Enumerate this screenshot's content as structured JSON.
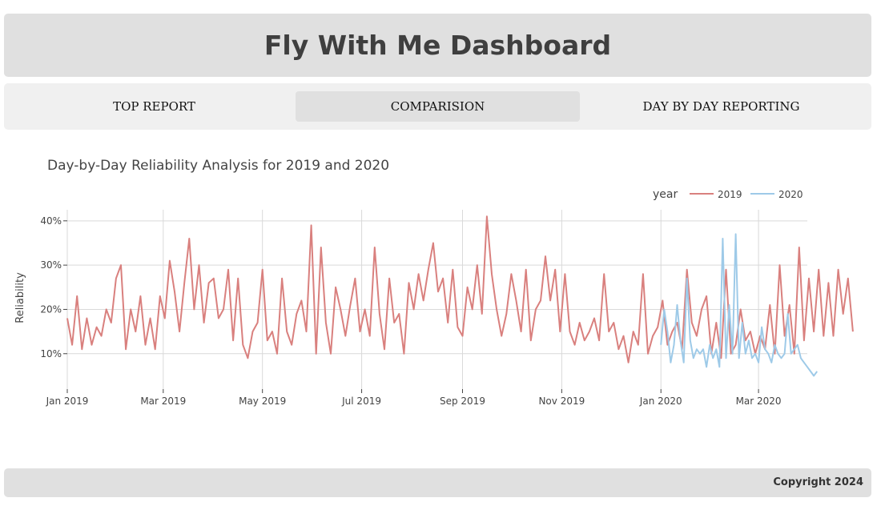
{
  "header": {
    "title": "Fly With Me Dashboard"
  },
  "nav": {
    "tabs": [
      {
        "label": "TOP REPORT",
        "active": false
      },
      {
        "label": "COMPARISION",
        "active": true
      },
      {
        "label": "DAY BY DAY REPORTING",
        "active": false
      }
    ]
  },
  "footer": {
    "copyright": "Copyright 2024"
  },
  "colors": {
    "series_2019": "#d9807e",
    "series_2020": "#9ecae8"
  },
  "chart_data": {
    "type": "line",
    "title": "Day-by-Day Reliability Analysis for 2019 and 2020",
    "xlabel": "",
    "ylabel": "Reliability",
    "legend": {
      "title": "year",
      "placement": "top-right"
    },
    "grid": true,
    "xlim": [
      "2019-01-01",
      "2020-03-31"
    ],
    "ylim": [
      0.02,
      0.425
    ],
    "y_ticks": [
      0.1,
      0.2,
      0.3,
      0.4
    ],
    "y_tick_labels": [
      "10%",
      "20%",
      "30%",
      "40%"
    ],
    "x_ticks": [
      "2019-01-01",
      "2019-03-01",
      "2019-05-01",
      "2019-07-01",
      "2019-09-01",
      "2019-11-01",
      "2020-01-01",
      "2020-03-01"
    ],
    "x_tick_labels": [
      "Jan 2019",
      "Mar 2019",
      "May 2019",
      "Jul 2019",
      "Sep 2019",
      "Nov 2019",
      "Jan 2020",
      "Mar 2020"
    ],
    "series": [
      {
        "name": "2019",
        "start_date": "2019-01-01",
        "step_days": 3,
        "values": [
          0.18,
          0.12,
          0.23,
          0.11,
          0.18,
          0.12,
          0.16,
          0.14,
          0.2,
          0.17,
          0.27,
          0.3,
          0.11,
          0.2,
          0.15,
          0.23,
          0.12,
          0.18,
          0.11,
          0.23,
          0.18,
          0.31,
          0.24,
          0.15,
          0.26,
          0.36,
          0.2,
          0.3,
          0.17,
          0.26,
          0.27,
          0.18,
          0.2,
          0.29,
          0.13,
          0.27,
          0.12,
          0.09,
          0.15,
          0.17,
          0.29,
          0.13,
          0.15,
          0.1,
          0.27,
          0.15,
          0.12,
          0.19,
          0.22,
          0.15,
          0.39,
          0.1,
          0.34,
          0.17,
          0.1,
          0.25,
          0.2,
          0.14,
          0.21,
          0.27,
          0.15,
          0.2,
          0.14,
          0.34,
          0.19,
          0.11,
          0.27,
          0.17,
          0.19,
          0.1,
          0.26,
          0.2,
          0.28,
          0.22,
          0.29,
          0.35,
          0.24,
          0.27,
          0.17,
          0.29,
          0.16,
          0.14,
          0.25,
          0.2,
          0.3,
          0.19,
          0.41,
          0.28,
          0.2,
          0.14,
          0.19,
          0.28,
          0.22,
          0.15,
          0.29,
          0.13,
          0.2,
          0.22,
          0.32,
          0.22,
          0.29,
          0.15,
          0.28,
          0.15,
          0.12,
          0.17,
          0.13,
          0.15,
          0.18,
          0.13,
          0.28,
          0.15,
          0.17,
          0.11,
          0.14,
          0.08,
          0.15,
          0.12,
          0.28,
          0.1,
          0.14,
          0.16,
          0.22,
          0.12,
          0.15,
          0.17,
          0.11,
          0.29,
          0.17,
          0.14,
          0.2,
          0.23,
          0.1,
          0.17,
          0.09,
          0.29,
          0.1,
          0.12,
          0.2,
          0.13,
          0.15,
          0.1,
          0.14,
          0.11,
          0.21,
          0.1,
          0.3,
          0.14,
          0.21,
          0.1,
          0.34,
          0.13,
          0.27,
          0.15,
          0.29,
          0.14,
          0.26,
          0.14,
          0.29,
          0.19,
          0.27,
          0.15
        ]
      },
      {
        "name": "2020",
        "start_date": "2020-01-01",
        "step_days": 2,
        "values": [
          0.12,
          0.2,
          0.15,
          0.08,
          0.12,
          0.21,
          0.13,
          0.08,
          0.27,
          0.13,
          0.09,
          0.11,
          0.1,
          0.11,
          0.07,
          0.12,
          0.09,
          0.11,
          0.07,
          0.36,
          0.09,
          0.21,
          0.1,
          0.37,
          0.09,
          0.17,
          0.1,
          0.13,
          0.09,
          0.1,
          0.08,
          0.16,
          0.11,
          0.1,
          0.08,
          0.12,
          0.1,
          0.09,
          0.1,
          0.19,
          0.1,
          0.11,
          0.12,
          0.09,
          0.08,
          0.07,
          0.06,
          0.05,
          0.06
        ]
      }
    ]
  }
}
